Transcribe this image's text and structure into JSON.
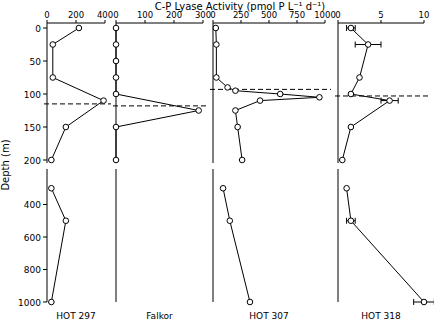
{
  "chart_data": {
    "type": "line",
    "title": "C-P Lyase Activity (pmol P L⁻¹ d⁻¹)",
    "y_label": "Depth (m)",
    "ylim": [
      0,
      1000
    ],
    "yticks": [
      0,
      50,
      100,
      150,
      200,
      400,
      600,
      800,
      1000
    ],
    "color": "#000000",
    "marker": "circle",
    "series": [
      {
        "name": "HOT 297",
        "xlim": [
          0,
          400
        ],
        "xticks": [
          0,
          200,
          400
        ],
        "x": [
          220,
          40,
          40,
          390,
          130,
          30,
          30,
          130,
          30
        ],
        "values": [
          0,
          25,
          75,
          110,
          150,
          200,
          300,
          500,
          1000
        ],
        "dashed_line_depth": 115
      },
      {
        "name": "Falkor",
        "xlim": [
          0,
          300
        ],
        "xticks": [
          0,
          100,
          200,
          300
        ],
        "x": [
          0,
          0,
          0,
          0,
          0,
          285,
          0,
          0
        ],
        "values": [
          0,
          25,
          50,
          75,
          100,
          125,
          150,
          200
        ],
        "dashed_line_depth": 118
      },
      {
        "name": "HOT 307",
        "xlim": [
          0,
          1000
        ],
        "xticks": [
          0,
          250,
          500,
          750,
          1000
        ],
        "x": [
          25,
          30,
          30,
          130,
          200,
          600,
          950,
          420,
          200,
          220,
          260,
          90,
          150,
          330
        ],
        "values": [
          0,
          25,
          75,
          90,
          95,
          100,
          105,
          110,
          125,
          150,
          200,
          300,
          500,
          1000
        ],
        "dashed_line_depth": 93
      },
      {
        "name": "HOT 318",
        "xlim": [
          0,
          10
        ],
        "xticks": [
          0,
          5,
          10
        ],
        "x": [
          1.5,
          3.5,
          2.5,
          1.5,
          6,
          1.5,
          0.5,
          1,
          1.5,
          10
        ],
        "values": [
          0,
          25,
          75,
          100,
          110,
          150,
          200,
          300,
          500,
          1000
        ],
        "errors": [
          0.5,
          1.5,
          null,
          null,
          1,
          null,
          null,
          null,
          0.5,
          1.2
        ],
        "dashed_line_depth": 103
      }
    ]
  }
}
